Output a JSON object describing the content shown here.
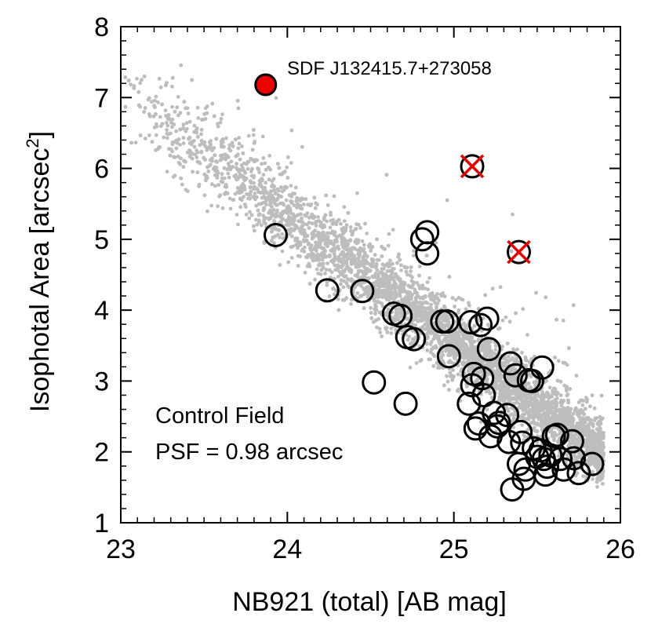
{
  "chart_data": {
    "type": "scatter",
    "xlabel": "NB921 (total) [AB mag]",
    "ylabel_main": "Isophotal Area [arcsec",
    "ylabel_sup": "2",
    "ylabel_tail": "]",
    "xlim": [
      23,
      26
    ],
    "ylim": [
      1,
      8
    ],
    "x_ticks": [
      23,
      24,
      25,
      26
    ],
    "x_tick_labels": [
      "23",
      "24",
      "25",
      "26"
    ],
    "y_ticks": [
      1,
      2,
      3,
      4,
      5,
      6,
      7,
      8
    ],
    "y_tick_labels": [
      "1",
      "2",
      "3",
      "4",
      "5",
      "6",
      "7",
      "8"
    ],
    "grid": false,
    "annotations": {
      "field_line1": "Control Field",
      "field_line2": "PSF = 0.98 arcsec",
      "highlight_label": "SDF J132415.7+273058"
    },
    "colors": {
      "background_points": "#bdbdbd",
      "highlight": "#ee0000",
      "cross": "#ee0000",
      "circle_edge": "#000000"
    },
    "highlight_point": {
      "x": 23.87,
      "y": 7.18
    },
    "crossed_points": [
      {
        "x": 25.11,
        "y": 6.03
      },
      {
        "x": 25.39,
        "y": 4.82
      }
    ],
    "open_circles": [
      [
        23.93,
        5.06
      ],
      [
        24.24,
        4.28
      ],
      [
        24.45,
        4.27
      ],
      [
        24.52,
        2.98
      ],
      [
        24.64,
        3.95
      ],
      [
        24.68,
        3.92
      ],
      [
        24.71,
        2.68
      ],
      [
        24.72,
        3.62
      ],
      [
        24.76,
        3.59
      ],
      [
        24.81,
        5.0
      ],
      [
        24.84,
        5.1
      ],
      [
        24.84,
        4.8
      ],
      [
        24.93,
        3.84
      ],
      [
        24.96,
        3.84
      ],
      [
        24.97,
        3.35
      ],
      [
        25.09,
        2.68
      ],
      [
        25.1,
        3.83
      ],
      [
        25.11,
        2.94
      ],
      [
        25.12,
        3.1
      ],
      [
        25.13,
        2.33
      ],
      [
        25.16,
        3.79
      ],
      [
        25.17,
        3.04
      ],
      [
        25.18,
        2.8
      ],
      [
        25.2,
        3.88
      ],
      [
        25.21,
        3.45
      ],
      [
        25.22,
        2.22
      ],
      [
        25.24,
        2.55
      ],
      [
        25.27,
        2.41
      ],
      [
        25.32,
        2.52
      ],
      [
        25.33,
        2.14
      ],
      [
        25.34,
        3.25
      ],
      [
        25.35,
        1.47
      ],
      [
        25.37,
        3.08
      ],
      [
        25.39,
        1.83
      ],
      [
        25.4,
        2.28
      ],
      [
        25.41,
        2.13
      ],
      [
        25.42,
        1.62
      ],
      [
        25.43,
        1.75
      ],
      [
        25.45,
        3.01
      ],
      [
        25.47,
        3.0
      ],
      [
        25.48,
        2.05
      ],
      [
        25.5,
        1.93
      ],
      [
        25.52,
        2.02
      ],
      [
        25.53,
        3.19
      ],
      [
        25.54,
        1.9
      ],
      [
        25.56,
        1.79
      ],
      [
        25.58,
        1.95
      ],
      [
        25.6,
        2.22
      ],
      [
        25.62,
        2.24
      ],
      [
        25.64,
        1.9
      ],
      [
        25.66,
        1.75
      ],
      [
        25.71,
        2.15
      ],
      [
        25.72,
        1.91
      ],
      [
        25.75,
        1.7
      ],
      [
        25.83,
        1.83
      ],
      [
        25.55,
        1.68
      ],
      [
        25.26,
        2.36
      ],
      [
        25.15,
        2.4
      ]
    ],
    "background_band": {
      "description": "dense cloud of field emitters",
      "n_points": 6000,
      "relation": "area decreasing with magnitude",
      "mag_range": [
        23.0,
        25.9
      ],
      "area_at_23": 7.1,
      "area_slope_per_mag": -1.78
    }
  }
}
